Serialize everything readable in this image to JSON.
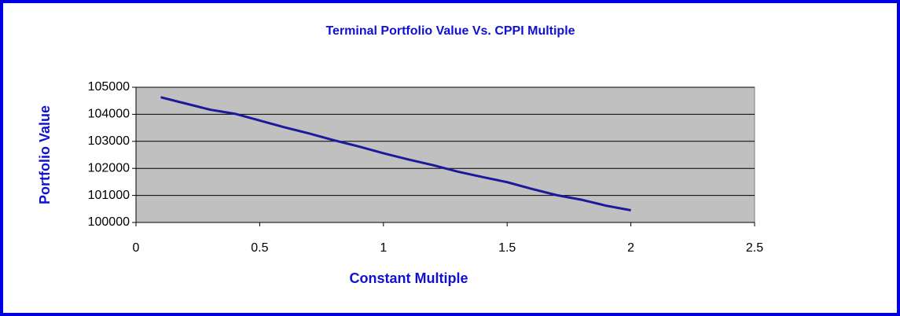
{
  "chart_data": {
    "type": "line",
    "title": "Terminal Portfolio Value Vs. CPPI Multiple",
    "x_label": "Constant Multiple",
    "y_label": "Portfolio Value",
    "x": [
      0.1,
      0.2,
      0.3,
      0.4,
      0.5,
      0.6,
      0.7,
      0.8,
      0.9,
      1.0,
      1.1,
      1.2,
      1.3,
      1.4,
      1.5,
      1.6,
      1.7,
      1.8,
      1.9,
      2.0
    ],
    "series": [
      {
        "name": "Portfolio Value",
        "color": "#1a1a9a",
        "values": [
          104630,
          104400,
          104170,
          104020,
          103770,
          103520,
          103290,
          103040,
          102810,
          102560,
          102330,
          102120,
          101880,
          101680,
          101490,
          101240,
          101010,
          100840,
          100620,
          100450
        ]
      }
    ],
    "xlim": [
      0,
      2.5
    ],
    "xticks": [
      0,
      0.5,
      1,
      1.5,
      2,
      2.5
    ],
    "ylim": [
      100000,
      105000
    ],
    "yticks": [
      100000,
      101000,
      102000,
      103000,
      104000,
      105000
    ],
    "grid": true
  }
}
